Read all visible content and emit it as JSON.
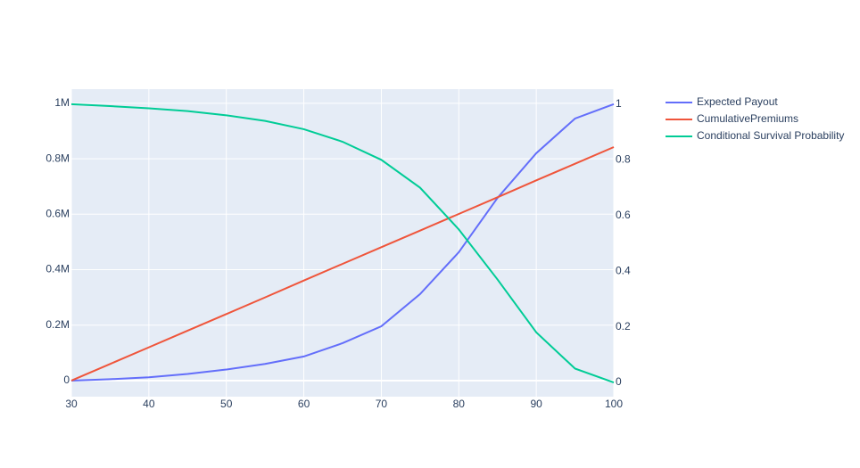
{
  "chart_data": {
    "type": "line",
    "x": [
      30,
      35,
      40,
      45,
      50,
      55,
      60,
      65,
      70,
      75,
      80,
      85,
      90,
      95,
      100
    ],
    "xlim": [
      30,
      100
    ],
    "xticks": [
      30,
      40,
      50,
      60,
      70,
      80,
      90,
      100
    ],
    "ylim": [
      -58000,
      1051000
    ],
    "yticks": [
      0,
      {
        "value": 200000,
        "label": "0.2M"
      },
      {
        "value": 400000,
        "label": "0.4M"
      },
      {
        "value": 600000,
        "label": "0.6M"
      },
      {
        "value": 800000,
        "label": "0.8M"
      },
      {
        "value": 1000000,
        "label": "1M"
      }
    ],
    "y2lim": [
      -0.051,
      1.054
    ],
    "y2ticks": [
      0,
      0.2,
      0.4,
      0.6,
      0.8,
      1
    ],
    "grid": true,
    "series": [
      {
        "name": "Expected Payout",
        "color": "#636efa",
        "values": [
          0,
          5000,
          12000,
          24000,
          40000,
          60000,
          87000,
          135000,
          196000,
          312000,
          463000,
          659000,
          820000,
          945000,
          997000
        ]
      },
      {
        "name": "CumulativePremiums",
        "color": "#ef553b",
        "values": [
          0,
          60000,
          120000,
          180000,
          240000,
          300000,
          361000,
          421000,
          481000,
          541000,
          601000,
          661000,
          722000,
          782000,
          842000
        ]
      },
      {
        "name": "Conditional Survival Probability",
        "color": "#00cc96",
        "axis": "y2",
        "values": [
          1,
          0.993,
          0.985,
          0.975,
          0.96,
          0.94,
          0.91,
          0.865,
          0.8,
          0.7,
          0.55,
          0.37,
          0.18,
          0.05,
          0
        ]
      }
    ]
  }
}
